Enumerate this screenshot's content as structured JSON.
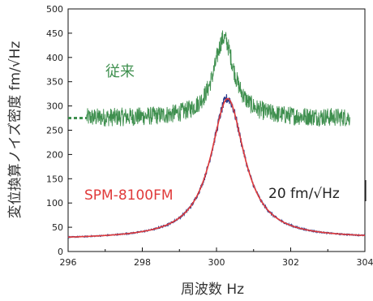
{
  "chart_data": {
    "type": "line",
    "xlabel": "周波数 Hz",
    "ylabel": "変位換算ノイズ密度 fm/√Hz",
    "xlim": [
      296,
      304
    ],
    "ylim": [
      0,
      500
    ],
    "x_ticks": [
      "296",
      "298",
      "300",
      "302",
      "304"
    ],
    "y_ticks": [
      "0",
      "50",
      "100",
      "150",
      "200",
      "250",
      "300",
      "350",
      "400",
      "450",
      "500"
    ],
    "grid": false,
    "annotations": {
      "conventional_label": "従来",
      "spm_label": "SPM-8100FM",
      "scale_label": "20 fm/√Hz"
    },
    "colors": {
      "conventional": "#3e8f4e",
      "spm_measured": "#2a3a8c",
      "spm_fit": "#e03a3a"
    },
    "series": [
      {
        "name": "従来",
        "baseline": 275,
        "peak_x": 300.2,
        "peak_y": 440,
        "noise_amplitude": 12,
        "x_range": [
          296.5,
          303.6
        ],
        "dashed_extension_x": [
          296.0,
          296.5
        ],
        "dashed_extension_y": 275
      },
      {
        "name": "SPM-8100FM",
        "peak_x": 300.3,
        "peak_y": 315,
        "baseline_start": 25,
        "baseline_end": 27,
        "x_range": [
          296,
          304
        ]
      }
    ]
  }
}
